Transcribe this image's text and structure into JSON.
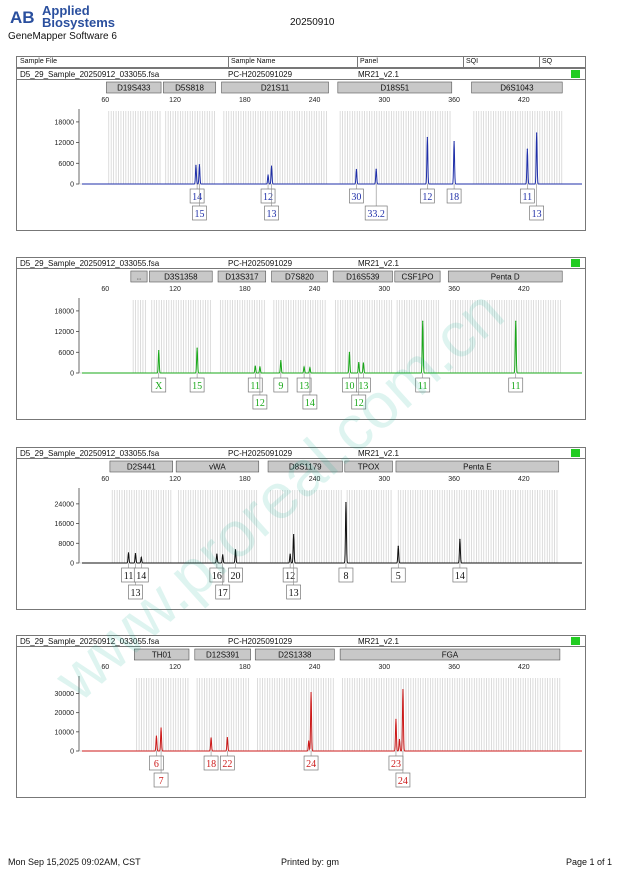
{
  "header": {
    "brand_line1": "Applied",
    "brand_line2": "Biosystems",
    "logo_text": "AB",
    "software": "GeneMapper Software 6",
    "run_date": "20250910",
    "columns": [
      "Sample File",
      "Sample Name",
      "Panel",
      "SQI",
      "SQ"
    ]
  },
  "footer": {
    "date": "Mon Sep 15,2025 09:02AM, CST",
    "printed_by": "Printed by: gm",
    "page": "Page 1 of 1"
  },
  "watermark": "www.proreal.com.cn",
  "status_color": "#22cc22",
  "chart_data": [
    {
      "type": "line",
      "sample_file": "D5_29_Sample_20250912_033055.fsa",
      "sample_name": "PC-H2025091029",
      "panel": "MR21_v2.1",
      "color": "#1f2fa8",
      "xlim": [
        40,
        470
      ],
      "x_ticks": [
        60,
        120,
        180,
        240,
        300,
        360,
        420
      ],
      "ylim": [
        0,
        20000
      ],
      "y_ticks": [
        0,
        6000,
        12000,
        18000
      ],
      "markers": [
        {
          "name": "D19S433",
          "start": 61,
          "end": 108
        },
        {
          "name": "D5S818",
          "start": 110,
          "end": 155
        },
        {
          "name": "D21S11",
          "start": 160,
          "end": 252
        },
        {
          "name": "D18S51",
          "start": 260,
          "end": 358
        },
        {
          "name": "D6S1043",
          "start": 375,
          "end": 453
        }
      ],
      "peaks": [
        {
          "x": 138,
          "height": 5400
        },
        {
          "x": 141,
          "height": 5600
        },
        {
          "x": 200,
          "height": 2600
        },
        {
          "x": 203,
          "height": 5200
        },
        {
          "x": 276,
          "height": 4200
        },
        {
          "x": 293,
          "height": 4300
        },
        {
          "x": 337,
          "height": 13500
        },
        {
          "x": 360,
          "height": 12300
        },
        {
          "x": 423,
          "height": 10100
        },
        {
          "x": 431,
          "height": 14800
        }
      ],
      "alleles": [
        {
          "label": "14",
          "x": 139,
          "row": 0
        },
        {
          "label": "15",
          "x": 141,
          "row": 1
        },
        {
          "label": "12",
          "x": 200,
          "row": 0
        },
        {
          "label": "13",
          "x": 203,
          "row": 1
        },
        {
          "label": "30",
          "x": 276,
          "row": 0
        },
        {
          "label": "33.2",
          "x": 293,
          "row": 1
        },
        {
          "label": "12",
          "x": 337,
          "row": 0
        },
        {
          "label": "18",
          "x": 360,
          "row": 0
        },
        {
          "label": "11",
          "x": 423,
          "row": 0
        },
        {
          "label": "13",
          "x": 431,
          "row": 1
        }
      ]
    },
    {
      "type": "line",
      "sample_file": "D5_29_Sample_20250912_033055.fsa",
      "sample_name": "PC-H2025091029",
      "panel": "MR21_v2.1",
      "color": "#1aa81a",
      "xlim": [
        40,
        470
      ],
      "x_ticks": [
        60,
        120,
        180,
        240,
        300,
        360,
        420
      ],
      "ylim": [
        0,
        20000
      ],
      "y_ticks": [
        0,
        6000,
        12000,
        18000
      ],
      "markers": [
        {
          "name": "..",
          "start": 82,
          "end": 96
        },
        {
          "name": "D3S1358",
          "start": 98,
          "end": 152
        },
        {
          "name": "D13S317",
          "start": 157,
          "end": 198
        },
        {
          "name": "D7S820",
          "start": 203,
          "end": 251
        },
        {
          "name": "D16S539",
          "start": 256,
          "end": 307
        },
        {
          "name": "CSF1PO",
          "start": 309,
          "end": 348
        },
        {
          "name": "Penta D",
          "start": 355,
          "end": 453
        }
      ],
      "peaks": [
        {
          "x": 106,
          "height": 6500
        },
        {
          "x": 139,
          "height": 7200
        },
        {
          "x": 189,
          "height": 2000
        },
        {
          "x": 193,
          "height": 1800
        },
        {
          "x": 211,
          "height": 3600
        },
        {
          "x": 231,
          "height": 1700
        },
        {
          "x": 236,
          "height": 1500
        },
        {
          "x": 270,
          "height": 6000
        },
        {
          "x": 278,
          "height": 3000
        },
        {
          "x": 282,
          "height": 2900
        },
        {
          "x": 333,
          "height": 15000
        },
        {
          "x": 413,
          "height": 15000
        }
      ],
      "alleles": [
        {
          "label": "X",
          "x": 106,
          "row": 0
        },
        {
          "label": "15",
          "x": 139,
          "row": 0
        },
        {
          "label": "11",
          "x": 189,
          "row": 0
        },
        {
          "label": "12",
          "x": 193,
          "row": 1
        },
        {
          "label": "9",
          "x": 211,
          "row": 0
        },
        {
          "label": "13",
          "x": 231,
          "row": 0
        },
        {
          "label": "14",
          "x": 236,
          "row": 1
        },
        {
          "label": "10",
          "x": 270,
          "row": 0
        },
        {
          "label": "13",
          "x": 282,
          "row": 0
        },
        {
          "label": "12",
          "x": 278,
          "row": 1
        },
        {
          "label": "11",
          "x": 333,
          "row": 0
        },
        {
          "label": "11",
          "x": 413,
          "row": 0
        }
      ]
    },
    {
      "type": "line",
      "sample_file": "D5_29_Sample_20250912_033055.fsa",
      "sample_name": "PC-H2025091029",
      "panel": "MR21_v2.1",
      "color": "#111111",
      "xlim": [
        40,
        470
      ],
      "x_ticks": [
        60,
        120,
        180,
        240,
        300,
        360,
        420
      ],
      "ylim": [
        0,
        28000
      ],
      "y_ticks": [
        0,
        8000,
        16000,
        24000
      ],
      "markers": [
        {
          "name": "D2S441",
          "start": 64,
          "end": 118
        },
        {
          "name": "vWA",
          "start": 121,
          "end": 192
        },
        {
          "name": "D8S1179",
          "start": 200,
          "end": 264
        },
        {
          "name": "TPOX",
          "start": 266,
          "end": 307
        },
        {
          "name": "Penta E",
          "start": 310,
          "end": 450
        }
      ],
      "peaks": [
        {
          "x": 80,
          "height": 4100
        },
        {
          "x": 86,
          "height": 3800
        },
        {
          "x": 91,
          "height": 2200
        },
        {
          "x": 156,
          "height": 3600
        },
        {
          "x": 161,
          "height": 3300
        },
        {
          "x": 172,
          "height": 5400
        },
        {
          "x": 219,
          "height": 3600
        },
        {
          "x": 222,
          "height": 11500
        },
        {
          "x": 267,
          "height": 24500
        },
        {
          "x": 312,
          "height": 6800
        },
        {
          "x": 365,
          "height": 9600
        }
      ],
      "alleles": [
        {
          "label": "11",
          "x": 80,
          "row": 0
        },
        {
          "label": "13",
          "x": 86,
          "row": 1
        },
        {
          "label": "14",
          "x": 91,
          "row": 0
        },
        {
          "label": "16",
          "x": 156,
          "row": 0
        },
        {
          "label": "17",
          "x": 161,
          "row": 1
        },
        {
          "label": "20",
          "x": 172,
          "row": 0
        },
        {
          "label": "12",
          "x": 219,
          "row": 0
        },
        {
          "label": "13",
          "x": 222,
          "row": 1
        },
        {
          "label": "8",
          "x": 267,
          "row": 0
        },
        {
          "label": "5",
          "x": 312,
          "row": 0
        },
        {
          "label": "14",
          "x": 365,
          "row": 0
        }
      ]
    },
    {
      "type": "line",
      "sample_file": "D5_29_Sample_20250912_033055.fsa",
      "sample_name": "PC-H2025091029",
      "panel": "MR21_v2.1",
      "color": "#cc1a1a",
      "xlim": [
        40,
        470
      ],
      "x_ticks": [
        60,
        120,
        180,
        240,
        300,
        360,
        420
      ],
      "ylim": [
        0,
        36000
      ],
      "y_ticks": [
        0,
        10000,
        20000,
        30000
      ],
      "markers": [
        {
          "name": "TH01",
          "start": 85,
          "end": 132
        },
        {
          "name": "D12S391",
          "start": 137,
          "end": 185
        },
        {
          "name": "D2S1338",
          "start": 189,
          "end": 257
        },
        {
          "name": "FGA",
          "start": 262,
          "end": 451
        }
      ],
      "peaks": [
        {
          "x": 104,
          "height": 7800
        },
        {
          "x": 108,
          "height": 12000
        },
        {
          "x": 151,
          "height": 6800
        },
        {
          "x": 165,
          "height": 7000
        },
        {
          "x": 235,
          "height": 5200
        },
        {
          "x": 237,
          "height": 30500
        },
        {
          "x": 310,
          "height": 16500
        },
        {
          "x": 313,
          "height": 6000
        },
        {
          "x": 316,
          "height": 32000
        }
      ],
      "alleles": [
        {
          "label": "6",
          "x": 104,
          "row": 0
        },
        {
          "label": "7",
          "x": 108,
          "row": 1
        },
        {
          "label": "18",
          "x": 151,
          "row": 0
        },
        {
          "label": "22",
          "x": 165,
          "row": 0
        },
        {
          "label": "24",
          "x": 237,
          "row": 0
        },
        {
          "label": "23",
          "x": 310,
          "row": 0
        },
        {
          "label": "24",
          "x": 316,
          "row": 1
        }
      ]
    }
  ]
}
